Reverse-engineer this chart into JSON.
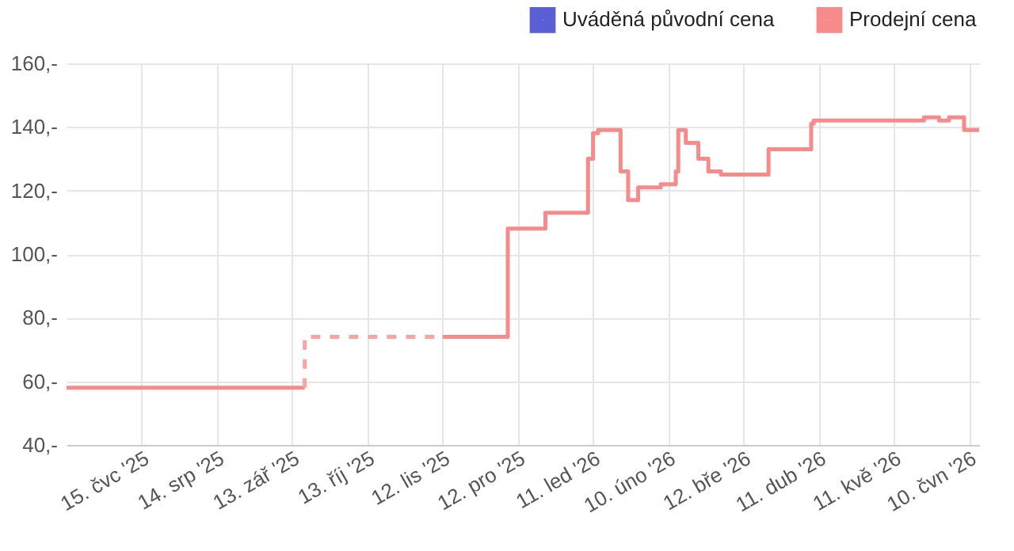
{
  "chart_data": {
    "type": "step",
    "legend": "top right",
    "grid": true,
    "xlim": [
      "2025-06-15",
      "2026-06-14"
    ],
    "xticks": [
      {
        "value": "2025-07-15",
        "label": "15. čvc '25"
      },
      {
        "value": "2025-08-14",
        "label": "14. srp '25"
      },
      {
        "value": "2025-09-13",
        "label": "13. zář '25"
      },
      {
        "value": "2025-10-13",
        "label": "13. říj '25"
      },
      {
        "value": "2025-11-12",
        "label": "12. lis '25"
      },
      {
        "value": "2025-12-12",
        "label": "12. pro '25"
      },
      {
        "value": "2026-01-11",
        "label": "11. led '26"
      },
      {
        "value": "2026-02-10",
        "label": "10. úno '26"
      },
      {
        "value": "2026-03-12",
        "label": "12. bře '26"
      },
      {
        "value": "2026-04-11",
        "label": "11. dub '26"
      },
      {
        "value": "2026-05-11",
        "label": "11. kvě '26"
      },
      {
        "value": "2026-06-10",
        "label": "10. čvn '26"
      }
    ],
    "ylim": [
      40,
      160
    ],
    "yticks": [
      {
        "value": 40,
        "label": "40,-"
      },
      {
        "value": 60,
        "label": "60,-"
      },
      {
        "value": 80,
        "label": "80,-"
      },
      {
        "value": 100,
        "label": "100,-"
      },
      {
        "value": 120,
        "label": "120,-"
      },
      {
        "value": 140,
        "label": "140,-"
      },
      {
        "value": 160,
        "label": "160,-"
      }
    ],
    "series": [
      {
        "name": "Uváděná původní cena",
        "color": "#5b5fd6"
      },
      {
        "name": "Prodejní cena",
        "color": "#f78a8a",
        "line_style": "solid",
        "x": [
          "2025-06-15",
          "2025-09-18",
          "2025-10-15",
          "2025-11-12",
          "2025-12-08",
          "2025-12-23",
          "2026-01-09",
          "2026-01-11",
          "2026-01-13",
          "2026-01-22",
          "2026-01-25",
          "2026-01-29",
          "2026-02-07",
          "2026-02-13",
          "2026-02-14",
          "2026-02-17",
          "2026-02-22",
          "2026-02-26",
          "2026-03-03",
          "2026-03-22",
          "2026-04-08",
          "2026-04-09",
          "2026-05-23",
          "2026-05-29",
          "2026-06-02",
          "2026-06-08",
          "2026-06-14"
        ],
        "values": [
          58,
          58,
          null,
          74,
          108,
          113,
          130,
          138,
          139,
          126,
          117,
          121,
          122,
          126,
          139,
          135,
          130,
          126,
          125,
          133,
          141,
          142,
          143,
          142,
          143,
          139,
          139
        ]
      },
      {
        "color": "#f9a3a3",
        "line_style": "dashed",
        "x": [
          "2025-09-18",
          "2025-09-18",
          "2025-11-12"
        ],
        "values": [
          58,
          74,
          74
        ]
      }
    ]
  }
}
